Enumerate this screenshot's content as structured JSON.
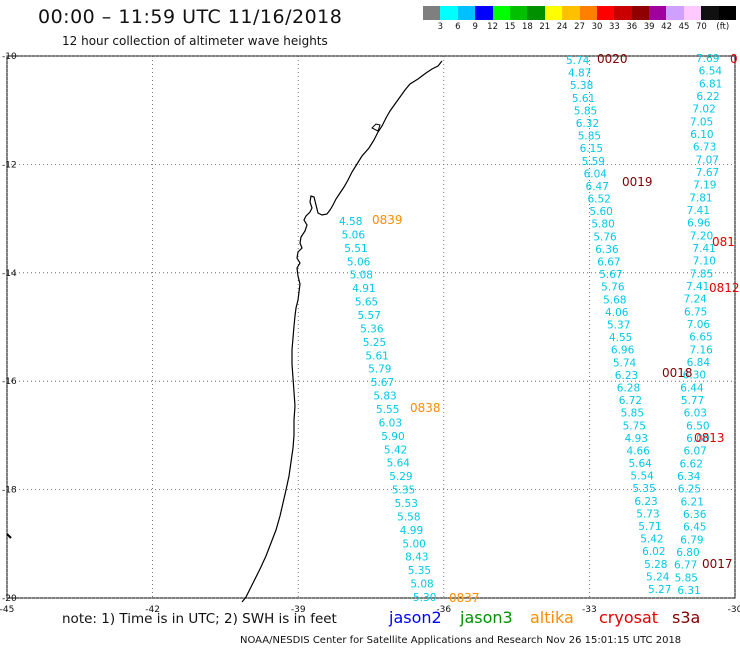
{
  "header": {
    "title": "00:00 – 11:59 UTC 11/16/2018",
    "subtitle": "12 hour collection of altimeter wave heights"
  },
  "legend": {
    "colors": [
      "#7f7f7f",
      "#00ffff",
      "#00c0ff",
      "#0000ff",
      "#00ff00",
      "#00c000",
      "#009000",
      "#ffff00",
      "#ffc000",
      "#ff8000",
      "#ff0000",
      "#c80000",
      "#900000",
      "#a000a0",
      "#d0a0ff",
      "#ffc8ff",
      "#101010",
      "#000000"
    ],
    "labels": [
      "3",
      "6",
      "9",
      "12",
      "15",
      "18",
      "21",
      "24",
      "27",
      "30",
      "33",
      "36",
      "39",
      "42",
      "45",
      "70",
      "(ft)"
    ]
  },
  "map": {
    "lon_ticks": [
      "-45",
      "-42",
      "-39",
      "-36",
      "-33",
      "-30"
    ],
    "lat_ticks": [
      "-10",
      "-12",
      "-14",
      "-16",
      "-18",
      "-20"
    ],
    "lon_range": [
      -45,
      -30
    ],
    "lat_range": [
      -20,
      -10
    ]
  },
  "tracks": [
    {
      "name": "track-0839",
      "pass_label": "0839",
      "color": "#00c8e6",
      "label_color": "#ff8c00",
      "values": [
        "4.58",
        "5.06",
        "5.51",
        "5.06",
        "5.08",
        "4.91",
        "5.65",
        "5.57",
        "5.36",
        "5.25",
        "5.61",
        "5.79",
        "5.67",
        "5.83",
        "5.55",
        "6.03",
        "5.90",
        "5.42",
        "5.64",
        "5.29",
        "5.35",
        "5.53",
        "5.58",
        "4.99",
        "5.00",
        "8.43",
        "5.35",
        "5.08",
        "5.30"
      ]
    },
    {
      "name": "track-0020",
      "pass_label": "0020",
      "color": "#00c8e6",
      "label_color": "#800000",
      "values": [
        "5.74",
        "4.87",
        "5.38",
        "5.61",
        "5.85",
        "6.32",
        "5.85",
        "6.15",
        "5.59",
        "6.04",
        "6.47",
        "6.52",
        "5.60",
        "5.80",
        "5.76",
        "6.36",
        "6.67",
        "5.67",
        "5.76",
        "5.68",
        "4.06",
        "5.37",
        "4.55",
        "6.96",
        "5.74",
        "6.23",
        "6.28",
        "6.72",
        "5.85",
        "5.75",
        "4.93",
        "4.66",
        "5.64",
        "5.54",
        "5.35",
        "6.23",
        "5.73",
        "5.71",
        "5.42",
        "6.02",
        "5.28",
        "5.24",
        "5.27"
      ]
    },
    {
      "name": "track-0019",
      "pass_label": "0019",
      "color": "#00c8e6",
      "label_color": "#800000",
      "values": [
        "7.69",
        "6.54",
        "6.81",
        "6.22",
        "7.02",
        "7.05",
        "6.10",
        "6.73",
        "7.07",
        "7.67",
        "7.19",
        "7.81",
        "7.41",
        "6.96",
        "7.20",
        "7.41",
        "7.10",
        "7.85",
        "7.41",
        "7.24",
        "6.75",
        "7.06",
        "6.65",
        "7.16",
        "6.84",
        "6.30",
        "6.44",
        "5.77",
        "6.03",
        "6.50",
        "6.00",
        "6.07",
        "6.62",
        "6.34",
        "6.25",
        "6.21",
        "6.36",
        "6.45",
        "6.79",
        "6.80",
        "6.77",
        "5.85",
        "6.31"
      ]
    }
  ],
  "pass_labels": {
    "p0839": "0839",
    "p0838": "0838",
    "p0837": "0837",
    "p0020": "0020",
    "p0019": "0019",
    "p0018": "0018",
    "p0017": "0017",
    "p081a": "081",
    "p0812": "0812",
    "p0813": "0813",
    "p0edge": "0"
  },
  "footer": {
    "note": "note: 1) Time is in UTC; 2) SWH is in feet",
    "satellites": [
      {
        "name": "jason2",
        "color": "#0000ff"
      },
      {
        "name": "jason3",
        "color": "#009000"
      },
      {
        "name": "altika",
        "color": "#ff8c00"
      },
      {
        "name": "cryosat",
        "color": "#e00000"
      },
      {
        "name": "s3a",
        "color": "#800000"
      }
    ],
    "credit": "NOAA/NESDIS Center for Satellite Applications and Research    Nov 26 15:01:15 UTC 2018"
  }
}
